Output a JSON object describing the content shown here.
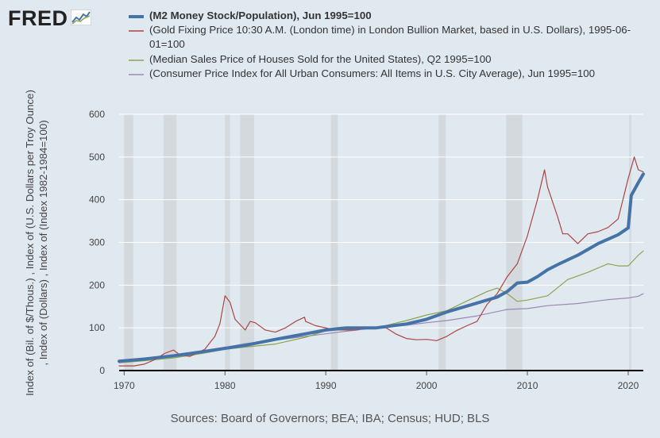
{
  "logo": {
    "text": "FRED",
    "icon": "chart-line-icon"
  },
  "chart_data": {
    "type": "line",
    "title": "",
    "xlabel": "",
    "ylabel": "Index of (Bil. of $/Thous.) , Index of (U.S. Dollars per Troy Ounce) , Index of (Dollars) , Index of (Index 1982-1984=100)",
    "xlim": [
      1969.5,
      2021.5
    ],
    "ylim": [
      0,
      600
    ],
    "x_ticks": [
      "1970",
      "1980",
      "1990",
      "2000",
      "2010",
      "2020"
    ],
    "y_ticks": [
      "0",
      "100",
      "200",
      "300",
      "400",
      "500",
      "600"
    ],
    "recessions": [
      [
        1970.0,
        1970.9
      ],
      [
        1973.9,
        1975.2
      ],
      [
        1980.0,
        1980.5
      ],
      [
        1981.5,
        1982.9
      ],
      [
        1990.5,
        1991.2
      ],
      [
        2001.2,
        2001.9
      ],
      [
        2007.9,
        2009.5
      ],
      [
        2020.1,
        2020.3
      ]
    ],
    "series": [
      {
        "name": "(M2 Money Stock/Population), Jun 1995=100",
        "color": "#4572a7",
        "width": 4,
        "x": [
          1969.5,
          1972,
          1975,
          1978,
          1980,
          1982,
          1985,
          1988,
          1990,
          1992,
          1995,
          1998,
          2000,
          2002,
          2005,
          2007,
          2008,
          2009,
          2010,
          2011,
          2012,
          2013,
          2015,
          2017,
          2019,
          2020,
          2020.3,
          2021,
          2021.5
        ],
        "values": [
          22,
          27,
          35,
          45,
          52,
          59,
          73,
          86,
          95,
          100,
          100,
          109,
          120,
          137,
          158,
          172,
          185,
          205,
          207,
          220,
          236,
          248,
          270,
          297,
          318,
          334,
          410,
          440,
          460
        ]
      },
      {
        "name": "(Gold Fixing Price 10:30 A.M. (London time) in London Bullion Market, based in U.S. Dollars), 1995-06-01=100",
        "color": "#aa4643",
        "width": 1.2,
        "x": [
          1969.5,
          1971,
          1972,
          1973,
          1974,
          1974.9,
          1975.5,
          1976.5,
          1977,
          1978,
          1979,
          1979.5,
          1980.0,
          1980.5,
          1981,
          1982,
          1982.5,
          1983,
          1984,
          1985,
          1986,
          1987,
          1987.9,
          1988,
          1989,
          1990,
          1991,
          1993,
          1994,
          1996,
          1997,
          1998,
          1999,
          2000,
          2001,
          2002,
          2003,
          2004,
          2005,
          2006,
          2007,
          2008,
          2009,
          2010,
          2011,
          2011.7,
          2012,
          2013,
          2013.5,
          2014,
          2015,
          2016,
          2017,
          2018,
          2019,
          2020,
          2020.6,
          2021,
          2021.5
        ],
        "values": [
          11,
          11,
          15,
          25,
          40,
          48,
          37,
          33,
          38,
          50,
          80,
          110,
          175,
          160,
          120,
          95,
          115,
          112,
          95,
          90,
          100,
          115,
          125,
          115,
          105,
          100,
          95,
          95,
          100,
          100,
          85,
          75,
          72,
          73,
          70,
          80,
          94,
          105,
          115,
          155,
          180,
          220,
          250,
          315,
          400,
          470,
          430,
          360,
          320,
          320,
          297,
          320,
          325,
          335,
          355,
          450,
          500,
          470,
          465
        ]
      },
      {
        "name": "(Median Sales Price of Houses Sold for the United States), Q2 1995=100",
        "color": "#89a54e",
        "width": 1.2,
        "x": [
          1969.5,
          1972,
          1975,
          1978,
          1980,
          1982,
          1985,
          1988,
          1990,
          1992,
          1995,
          1998,
          2000,
          2002,
          2004,
          2006,
          2007,
          2008,
          2009,
          2010,
          2012,
          2014,
          2016,
          2018,
          2019,
          2020,
          2021,
          2021.5
        ],
        "values": [
          18,
          23,
          30,
          41,
          50,
          55,
          62,
          78,
          93,
          96,
          100,
          117,
          130,
          140,
          163,
          185,
          193,
          180,
          162,
          165,
          175,
          213,
          230,
          250,
          245,
          245,
          270,
          280
        ]
      },
      {
        "name": "(Consumer Price Index for All Urban Consumers: All Items in U.S. City Average), Jun 1995=100",
        "color": "#9b87b6",
        "width": 1.2,
        "x": [
          1969.5,
          1972,
          1975,
          1978,
          1980,
          1982,
          1985,
          1988,
          1990,
          1992,
          1995,
          1998,
          2000,
          2002,
          2005,
          2008,
          2010,
          2012,
          2015,
          2018,
          2020,
          2021,
          2021.5
        ],
        "values": [
          24,
          27,
          35,
          42,
          54,
          63,
          71,
          80,
          86,
          92,
          100,
          106,
          112,
          117,
          128,
          143,
          145,
          152,
          157,
          166,
          170,
          174,
          180
        ]
      }
    ],
    "legend": [
      {
        "text": "(M2 Money Stock/Population), Jun 1995=100",
        "bold": true
      },
      {
        "text": "(Gold Fixing Price 10:30 A.M. (London time) in London Bullion Market, based in U.S. Dollars), 1995-06-01=100"
      },
      {
        "text": "(Median Sales Price of Houses Sold for the United States), Q2 1995=100"
      },
      {
        "text": "(Consumer Price Index for All Urban Consumers: All Items in U.S. City Average), Jun 1995=100"
      }
    ]
  },
  "ylabel_lines": [
    "Index of (Bil. of $/Thous.) , Index of (U.S. Dollars per Troy Ounce)",
    ", Index of (Dollars) , Index of (Index 1982-1984=100)"
  ],
  "sources": "Sources: Board of Governors; BEA; IBA; Census; HUD; BLS"
}
